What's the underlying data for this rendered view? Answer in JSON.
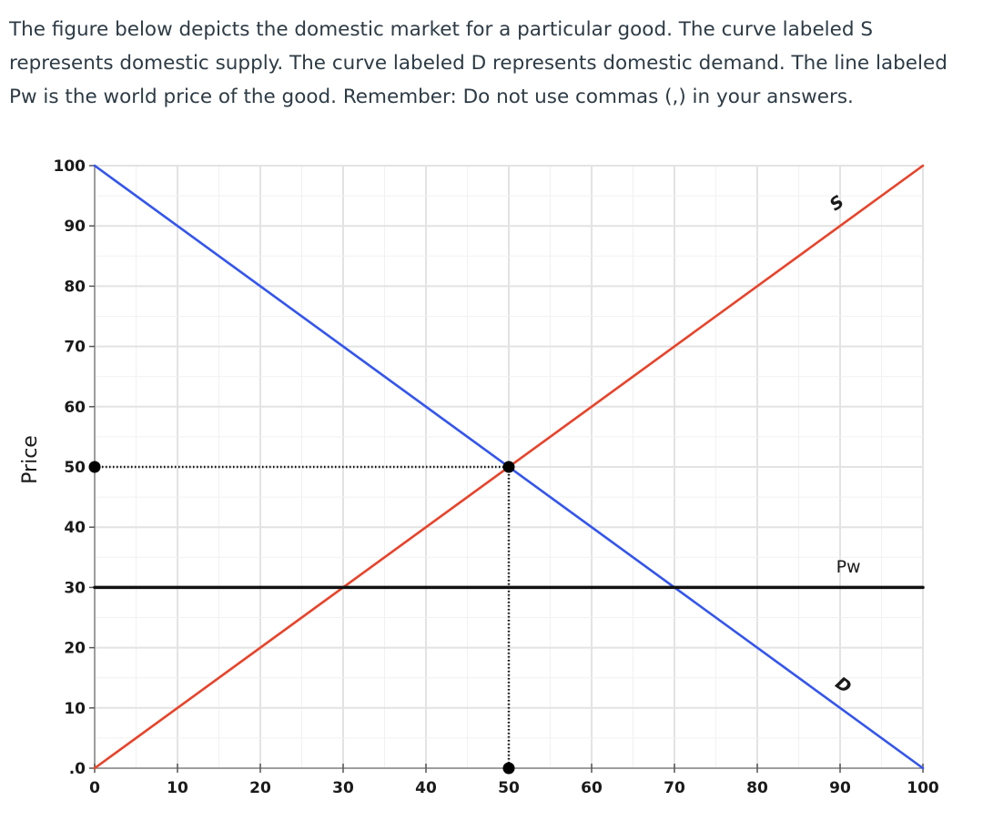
{
  "question": {
    "text": "The figure below depicts the domestic market for a particular good. The curve labeled S represents domestic supply. The curve labeled D represents domestic demand. The line labeled Pw is the world price of the good. Remember: Do not use commas (,) in your answers."
  },
  "chart_data": {
    "type": "line",
    "title": "",
    "xlabel": "",
    "ylabel": "Price",
    "xlim": [
      0,
      100
    ],
    "ylim": [
      0,
      100
    ],
    "grid": true,
    "x_ticks": [
      "0",
      "10",
      "20",
      "30",
      "40",
      "50",
      "60",
      "70",
      "80",
      "90",
      "100"
    ],
    "y_ticks": [
      ".0",
      "10",
      "20",
      "30",
      "40",
      "50",
      "60",
      "70",
      "80",
      "90",
      "100"
    ],
    "series": [
      {
        "name": "S",
        "color": "#e8432a",
        "points": [
          [
            0,
            0
          ],
          [
            100,
            100
          ]
        ],
        "label_at": [
          90,
          93
        ]
      },
      {
        "name": "D",
        "color": "#3355ee",
        "points": [
          [
            0,
            100
          ],
          [
            100,
            0
          ]
        ],
        "label_at": [
          90,
          13
        ]
      },
      {
        "name": "Pw",
        "color": "#111111",
        "points": [
          [
            0,
            30
          ],
          [
            100,
            30
          ]
        ],
        "label_at": [
          91,
          32.5
        ]
      }
    ],
    "equilibrium": {
      "point": [
        50,
        50
      ],
      "guide_color": "#111111",
      "marker_color": "#000000"
    }
  }
}
